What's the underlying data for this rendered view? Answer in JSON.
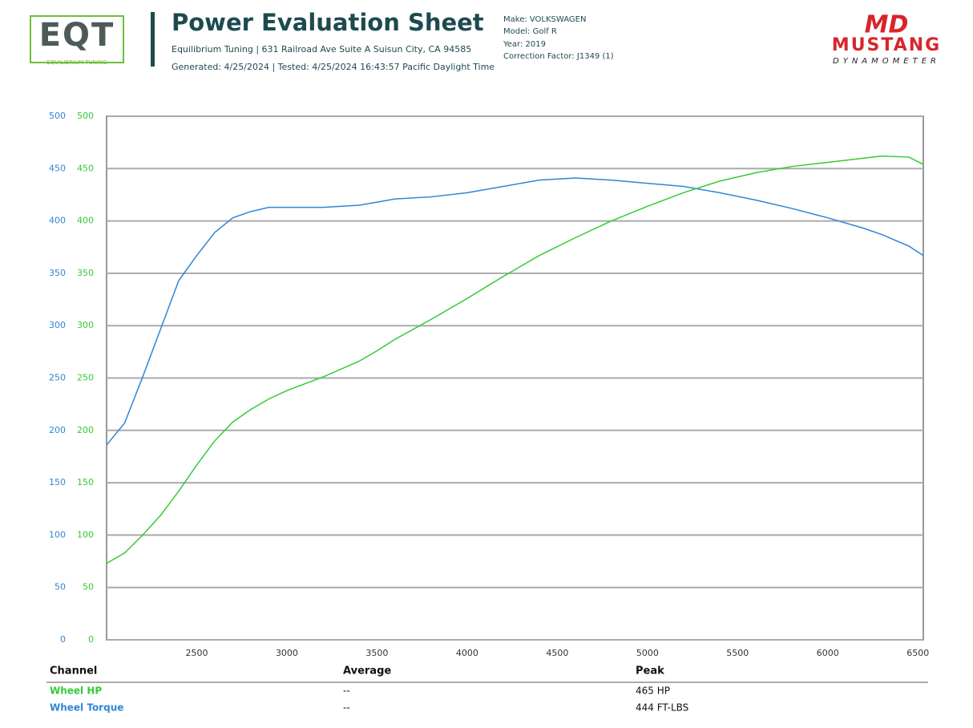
{
  "header": {
    "logo_left": "EQT",
    "logo_left_sub": "EQUILIBRIUM TUNING",
    "title": "Power Evaluation Sheet",
    "address": "Equilibrium Tuning | 631 Railroad Ave Suite A Suisun City, CA 94585",
    "generated": "Generated: 4/25/2024 | Tested: 4/25/2024 16:43:57 Pacific Daylight Time",
    "make": "Make: VOLKSWAGEN",
    "model": "Model: Golf R",
    "year": "Year: 2019",
    "correction": "Correction Factor: J1349 (1)",
    "logo_right_top": "MD",
    "logo_right": "MUSTANG",
    "logo_right_sub": "DYNAMOMETER"
  },
  "chart_data": {
    "type": "line",
    "x": [
      2000,
      2100,
      2200,
      2300,
      2400,
      2500,
      2600,
      2700,
      2800,
      2900,
      3000,
      3200,
      3400,
      3500,
      3600,
      3800,
      4000,
      4200,
      4400,
      4600,
      4800,
      5000,
      5200,
      5400,
      5600,
      5800,
      6000,
      6200,
      6300,
      6450,
      6530
    ],
    "series": [
      {
        "name": "Wheel Torque",
        "color": "#2f86d6",
        "axis": "y",
        "values": [
          186,
          207,
          251,
          297,
          343,
          367,
          389,
          403,
          409,
          413,
          413,
          413,
          415,
          418,
          421,
          423,
          427,
          433,
          439,
          441,
          439,
          436,
          433,
          427,
          420,
          412,
          403,
          393,
          387,
          376,
          367
        ]
      },
      {
        "name": "Wheel HP",
        "color": "#33cc33",
        "axis": "y2",
        "values": [
          73,
          83,
          100,
          119,
          142,
          167,
          190,
          208,
          220,
          230,
          238,
          251,
          266,
          276,
          287,
          306,
          326,
          347,
          367,
          384,
          400,
          414,
          427,
          438,
          446,
          452,
          456,
          460,
          462,
          461,
          454
        ]
      }
    ],
    "xlim": [
      2000,
      6530
    ],
    "xticks": [
      2500,
      3000,
      3500,
      4000,
      4500,
      5000,
      5500,
      6000,
      6500
    ],
    "ylim": [
      0,
      500
    ],
    "yticks": [
      0,
      50,
      100,
      150,
      200,
      250,
      300,
      350,
      400,
      450,
      500
    ],
    "y2lim": [
      0,
      500
    ],
    "y2ticks": [
      0,
      50,
      100,
      150,
      200,
      250,
      300,
      350,
      400,
      450,
      500
    ],
    "grid": true
  },
  "table": {
    "headers": [
      "Channel",
      "Average",
      "Peak"
    ],
    "rows": [
      [
        "Wheel HP",
        "--",
        "465 HP"
      ],
      [
        "Wheel Torque",
        "--",
        "444 FT-LBS"
      ]
    ]
  }
}
